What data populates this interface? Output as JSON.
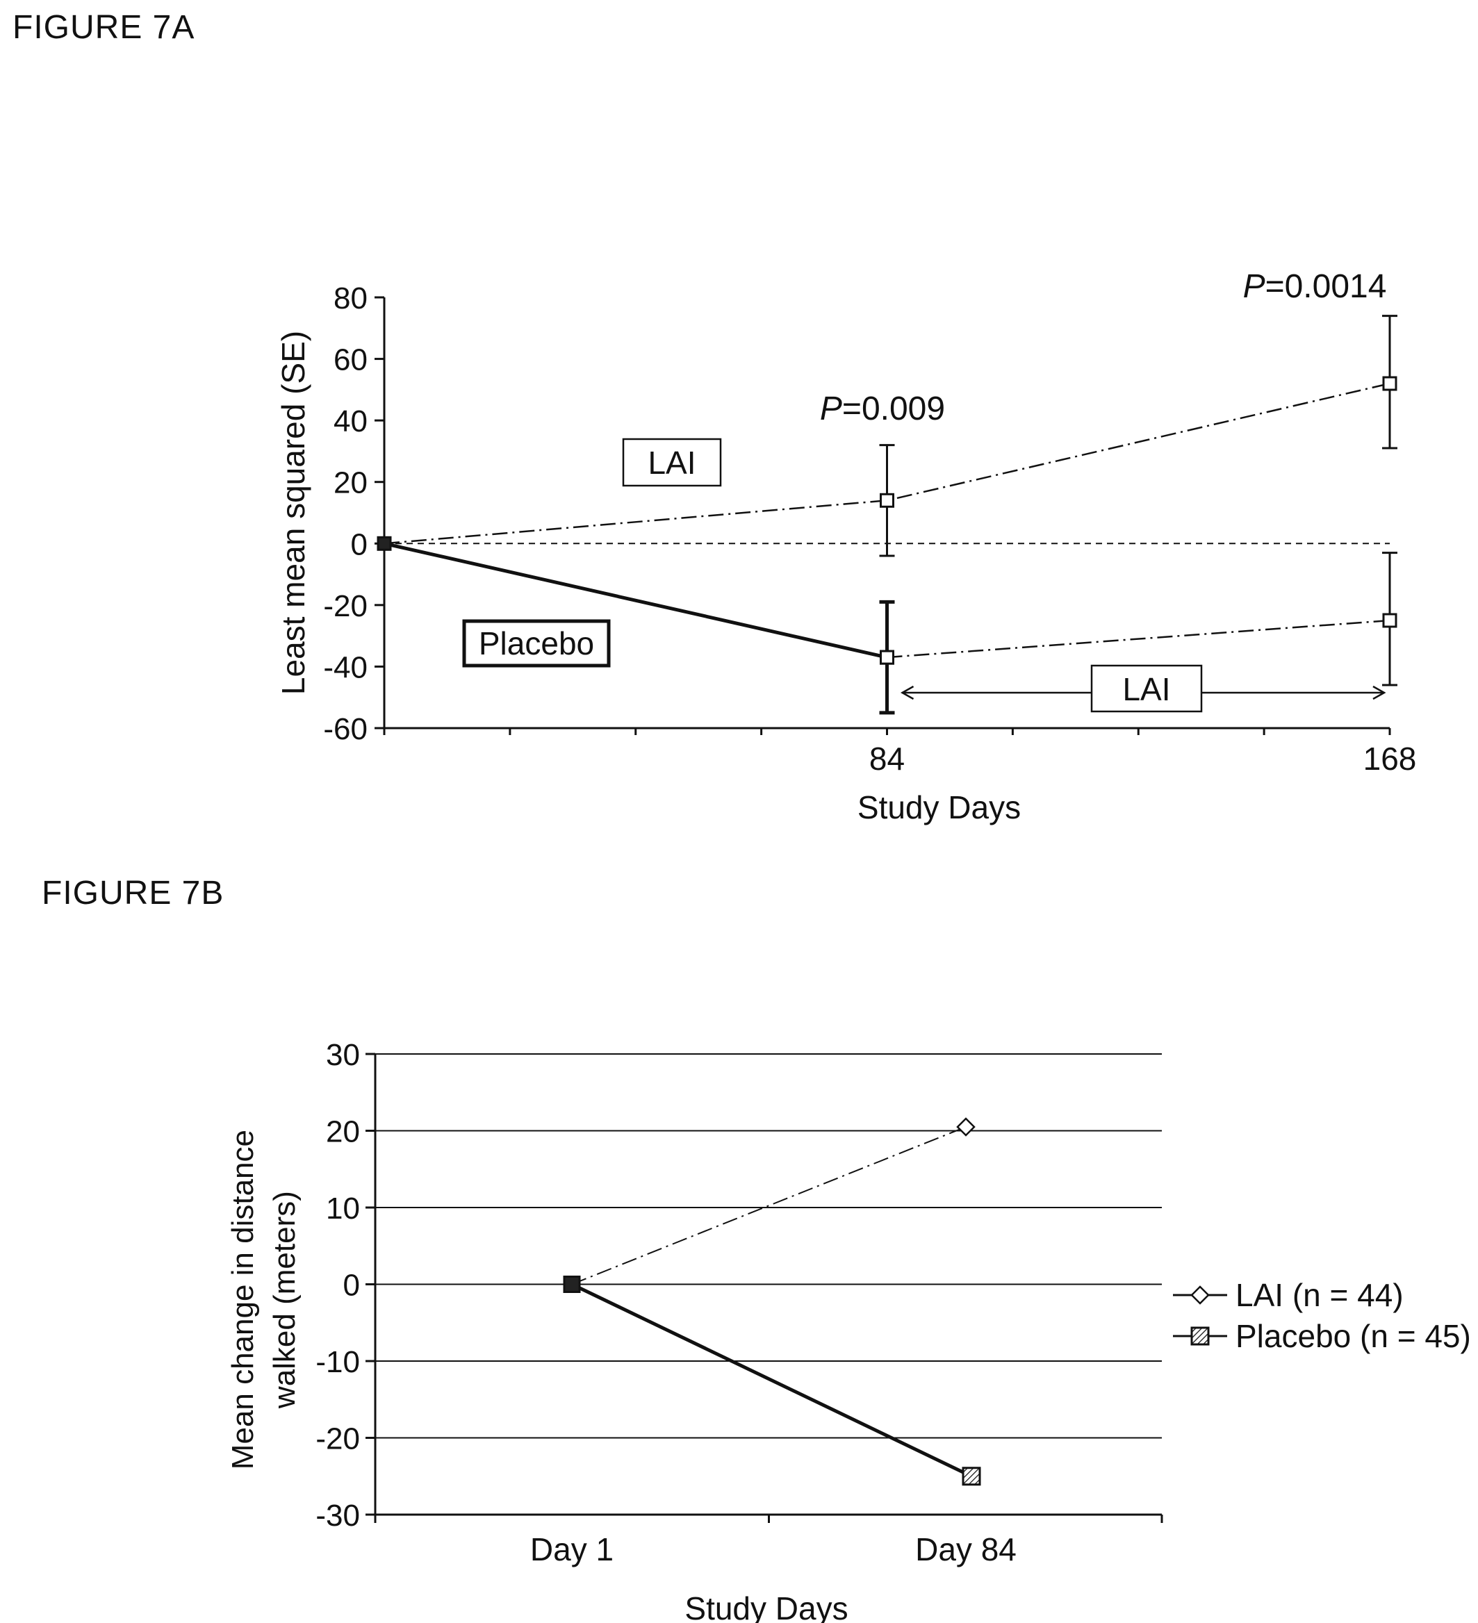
{
  "figures": [
    {
      "label": "FIGURE 7A"
    },
    {
      "label": "FIGURE 7B"
    }
  ],
  "chart_data": [
    {
      "type": "line",
      "ylabel": "Least mean squared (SE)",
      "xlabel": "Study Days",
      "xlim": [
        0,
        168
      ],
      "ylim": [
        -60,
        80
      ],
      "x_ticks": [
        84,
        168
      ],
      "x_minor_ticks": [
        0,
        21,
        42,
        63,
        84,
        105,
        126,
        147,
        168
      ],
      "y_ticks": [
        80,
        60,
        40,
        20,
        0,
        -20,
        -40,
        -60
      ],
      "reference_line": {
        "y": 0,
        "style": "dashed"
      },
      "series": [
        {
          "label_box": "LAI",
          "style": "dash-dot",
          "marker": "open-square",
          "points": [
            {
              "x": 0,
              "y": 0
            },
            {
              "x": 84,
              "y": 14,
              "err_low": -4,
              "err_high": 32
            },
            {
              "x": 168,
              "y": 52,
              "err_low": 31,
              "err_high": 74
            }
          ]
        },
        {
          "label_box": "Placebo",
          "style": "solid-thick",
          "marker": "filled-square",
          "points": [
            {
              "x": 0,
              "y": 0
            },
            {
              "x": 84,
              "y": -37,
              "err_low": -55,
              "err_high": -19
            }
          ]
        },
        {
          "style": "dash-dot",
          "marker": "open-square",
          "points": [
            {
              "x": 84,
              "y": -37
            },
            {
              "x": 168,
              "y": -25,
              "err_low": -46,
              "err_high": -3
            }
          ]
        }
      ],
      "annotations": [
        {
          "p_prefix": "P",
          "p_value": "=0.009",
          "x": 84
        },
        {
          "p_prefix": "P",
          "p_value": "=0.0014",
          "x": 168
        }
      ],
      "range_label": {
        "text": "LAI",
        "x_from": 84,
        "x_to": 168,
        "y": -49
      }
    },
    {
      "type": "line",
      "ylabel_line1": "Mean change in distance",
      "ylabel_line2": "walked  (meters)",
      "xlabel": "Study Days",
      "categories": [
        "Day 1",
        "Day 84"
      ],
      "ylim": [
        -30,
        30
      ],
      "y_ticks": [
        30,
        20,
        10,
        0,
        -10,
        -20,
        -30
      ],
      "grid": true,
      "legend_position": "right",
      "series": [
        {
          "name": "LAI (n = 44)",
          "values": [
            0,
            20.5
          ],
          "style": "dash-dot",
          "marker": "open-diamond"
        },
        {
          "name": "Placebo (n = 45)",
          "values": [
            0,
            -25
          ],
          "style": "solid-thick",
          "marker": "hatched-square"
        }
      ]
    }
  ]
}
